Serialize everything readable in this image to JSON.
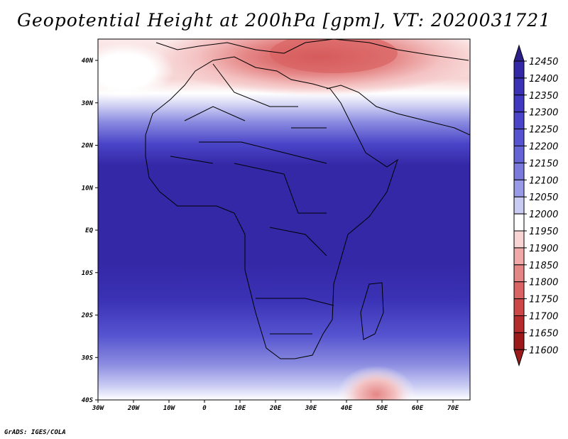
{
  "map": {
    "title": "Geopotential Height at 200hPa [gpm], VT: 2020031721",
    "credit": "GrADS: IGES/COLA",
    "lon_ticks": [
      "30W",
      "20W",
      "10W",
      "0",
      "10E",
      "20E",
      "30E",
      "40E",
      "50E",
      "60E",
      "70E"
    ],
    "lat_ticks": [
      "40N",
      "30N",
      "20N",
      "10N",
      "EQ",
      "10S",
      "20S",
      "30S",
      "40S"
    ]
  },
  "colorbar": {
    "levels": [
      "12450",
      "12400",
      "12350",
      "12300",
      "12250",
      "12200",
      "12150",
      "12100",
      "12050",
      "12000",
      "11950",
      "11900",
      "11850",
      "11800",
      "11750",
      "11700",
      "11650",
      "11600"
    ],
    "colors": [
      "#2d1f8a",
      "#3428a6",
      "#3a31b4",
      "#4039c0",
      "#4a45c8",
      "#5553cf",
      "#6564d6",
      "#7a7adc",
      "#9a9be6",
      "#c9cbf3",
      "#ffffff",
      "#f8d4d4",
      "#f0a8a8",
      "#e58686",
      "#da6464",
      "#cd4747",
      "#b52a2a",
      "#9c1a1a"
    ]
  }
}
